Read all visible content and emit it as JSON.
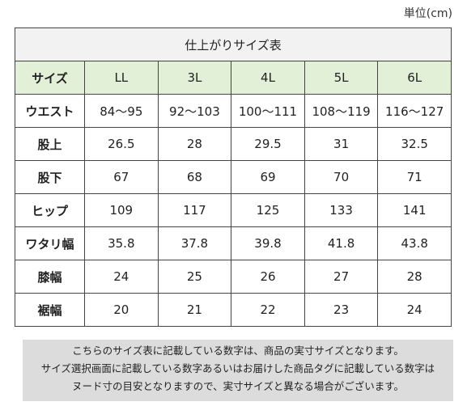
{
  "unit_label": "単位(cm)",
  "table": {
    "title": "仕上がりサイズ表",
    "header": {
      "label": "サイズ",
      "sizes": [
        "LL",
        "3L",
        "4L",
        "5L",
        "6L"
      ]
    },
    "rows": [
      {
        "label": "ウエスト",
        "values": [
          "84～95",
          "92～103",
          "100～111",
          "108～119",
          "116～127"
        ]
      },
      {
        "label": "股上",
        "values": [
          "26.5",
          "28",
          "29.5",
          "31",
          "32.5"
        ]
      },
      {
        "label": "股下",
        "values": [
          "67",
          "68",
          "69",
          "70",
          "71"
        ]
      },
      {
        "label": "ヒップ",
        "values": [
          "109",
          "117",
          "125",
          "133",
          "141"
        ]
      },
      {
        "label": "ワタリ幅",
        "values": [
          "35.8",
          "37.8",
          "39.8",
          "41.8",
          "43.8"
        ]
      },
      {
        "label": "膝幅",
        "values": [
          "24",
          "25",
          "26",
          "27",
          "28"
        ]
      },
      {
        "label": "裾幅",
        "values": [
          "20",
          "21",
          "22",
          "23",
          "24"
        ]
      }
    ]
  },
  "note": {
    "lines": [
      "こちらのサイズ表に記載している数字は、商品の実寸サイズとなります。",
      "サイズ選択画面に記載している数字あるいはお届けした商品タグに記載している数字は",
      "ヌード寸の目安となりますので、実寸サイズと異なる場合がございます。"
    ]
  },
  "colors": {
    "header_green": "#e3f0d8",
    "title_gray": "#f2f2f2",
    "note_gray": "#dcdcdc"
  }
}
